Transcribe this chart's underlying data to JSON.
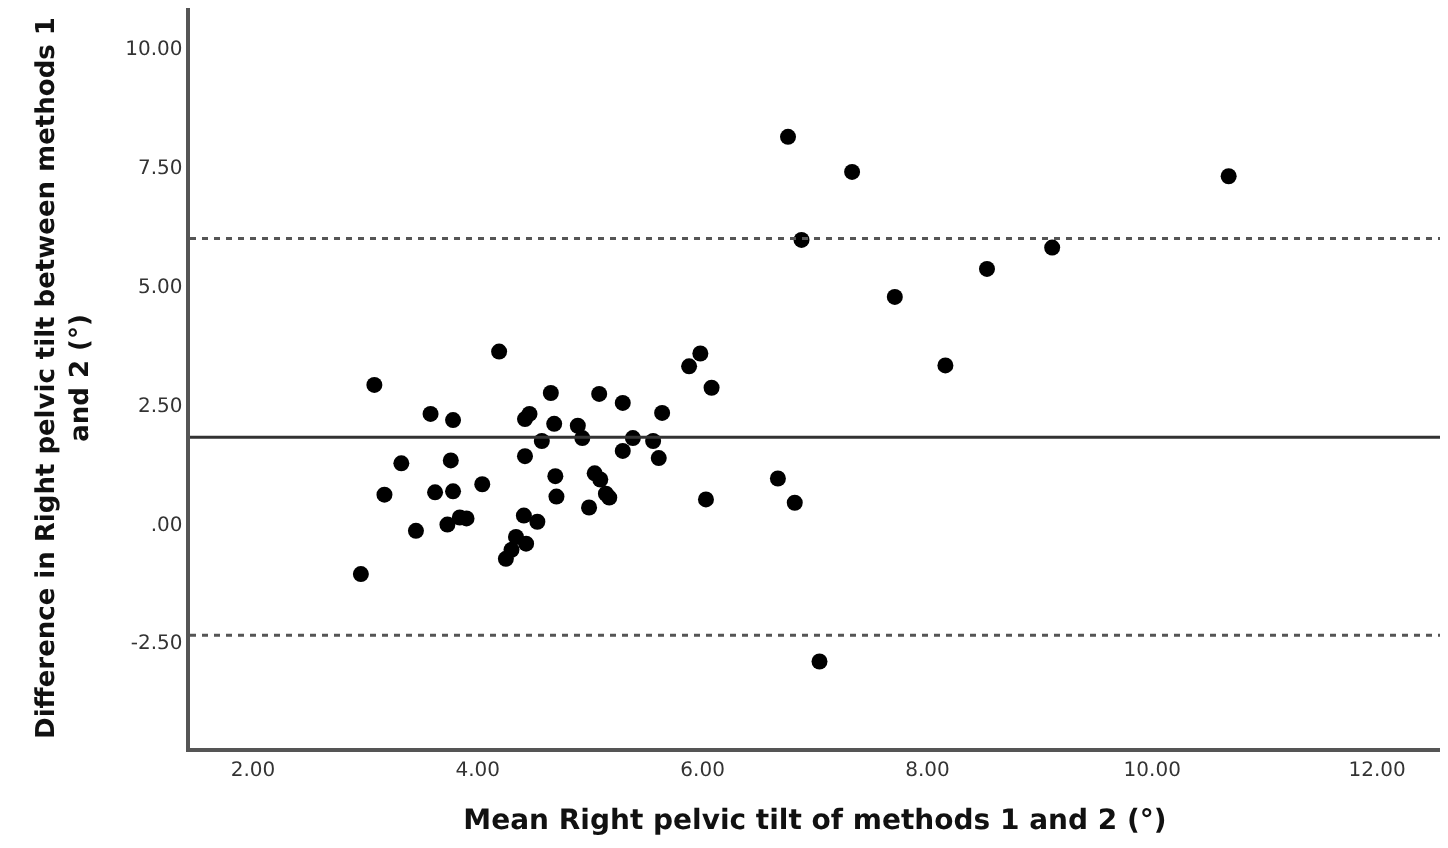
{
  "chart_data": {
    "type": "scatter",
    "xlabel": "Mean Right pelvic tilt of methods 1 and 2 (°)",
    "ylabel": "Difference in Right pelvic tilt between methods 1 and 2 (°)",
    "x": [
      6.76,
      7.33,
      10.68,
      6.88,
      9.11,
      8.53,
      7.71,
      8.16,
      4.19,
      5.98,
      5.88,
      6.08,
      3.08,
      4.65,
      5.08,
      5.29,
      3.58,
      5.64,
      4.46,
      4.42,
      3.78,
      4.68,
      4.89,
      4.93,
      5.38,
      4.57,
      5.56,
      3.32,
      3.76,
      4.42,
      5.29,
      5.61,
      4.69,
      5.04,
      5.09,
      4.04,
      6.67,
      3.17,
      3.62,
      3.78,
      4.7,
      5.14,
      5.17,
      6.03,
      6.82,
      4.99,
      3.84,
      3.9,
      4.41,
      4.53,
      3.73,
      3.45,
      4.34,
      4.43,
      4.3,
      4.25,
      2.96,
      7.04
    ],
    "values": [
      8.14,
      7.4,
      7.31,
      5.97,
      5.81,
      5.36,
      4.77,
      3.33,
      3.62,
      3.58,
      3.31,
      2.86,
      2.92,
      2.75,
      2.73,
      2.54,
      2.31,
      2.33,
      2.31,
      2.2,
      2.18,
      2.1,
      2.06,
      1.8,
      1.8,
      1.74,
      1.74,
      1.27,
      1.33,
      1.42,
      1.53,
      1.38,
      1.0,
      1.06,
      0.93,
      0.83,
      0.95,
      0.61,
      0.66,
      0.68,
      0.57,
      0.63,
      0.55,
      0.51,
      0.44,
      0.34,
      0.13,
      0.11,
      0.17,
      0.04,
      -0.02,
      -0.15,
      -0.28,
      -0.42,
      -0.55,
      -0.74,
      -1.06,
      -2.9
    ],
    "color": "#000000",
    "marker": "circle",
    "xlim": [
      1.44,
      12.56
    ],
    "ylim": [
      -4.72,
      10.85
    ],
    "xticks": [
      {
        "value": 2,
        "label": "2.00"
      },
      {
        "value": 4,
        "label": "4.00"
      },
      {
        "value": 6,
        "label": "6.00"
      },
      {
        "value": 8,
        "label": "8.00"
      },
      {
        "value": 10,
        "label": "10.00"
      },
      {
        "value": 12,
        "label": "12.00"
      }
    ],
    "yticks": [
      {
        "value": -2.5,
        "label": "-2.50"
      },
      {
        "value": 0,
        "label": ".00"
      },
      {
        "value": 2.5,
        "label": "2.50"
      },
      {
        "value": 5,
        "label": "5.00"
      },
      {
        "value": 7.5,
        "label": "7.50"
      },
      {
        "value": 10,
        "label": "10.00"
      }
    ],
    "ref_lines": [
      {
        "axis": "y",
        "value": 6.0,
        "line_style": "dotted",
        "color": "#555555"
      },
      {
        "axis": "y",
        "value": 1.82,
        "line_style": "solid",
        "color": "#333333"
      },
      {
        "axis": "y",
        "value": -2.35,
        "line_style": "dotted",
        "color": "#555555"
      }
    ],
    "legend": false
  }
}
